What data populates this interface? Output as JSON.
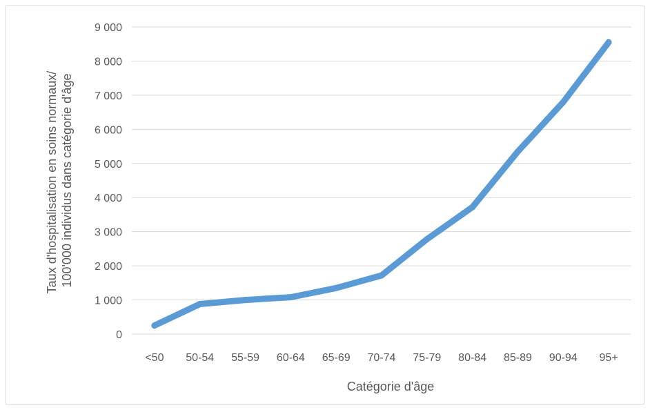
{
  "chart_data": {
    "type": "line",
    "title": "",
    "xlabel": "Catégorie d'âge",
    "ylabel_lines": [
      "Taux d'hospitalisation en soins normaux/",
      "100'000 individus dans catégorie d'âge"
    ],
    "categories": [
      "<50",
      "50-54",
      "55-59",
      "60-64",
      "65-69",
      "70-74",
      "75-79",
      "80-84",
      "85-89",
      "90-94",
      "95+"
    ],
    "series": [
      {
        "values": [
          250,
          880,
          1000,
          1080,
          1350,
          1720,
          2780,
          3720,
          5350,
          6800,
          8550
        ],
        "color": "#5b9bd5"
      }
    ],
    "ylim": [
      0,
      9000
    ],
    "yticks": [
      0,
      1000,
      2000,
      3000,
      4000,
      5000,
      6000,
      7000,
      8000,
      9000
    ],
    "ytick_labels": [
      "0",
      "1 000",
      "2 000",
      "3 000",
      "4 000",
      "5 000",
      "6 000",
      "7 000",
      "8 000",
      "9 000"
    ],
    "grid": "horizontal",
    "gridline_color": "#d9d9d9",
    "legend": "none"
  }
}
